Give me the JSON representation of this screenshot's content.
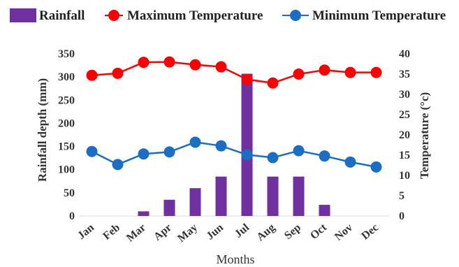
{
  "chart_data": {
    "type": "bar",
    "categories": [
      "Jan",
      "Feb",
      "Mar",
      "Apr",
      "May",
      "Jun",
      "Jul",
      "Aug",
      "Sep",
      "Oct",
      "Nov",
      "Dec"
    ],
    "series": [
      {
        "name": "Rainfall",
        "type": "bar",
        "axis": "left",
        "color": "#7030a0",
        "values": [
          0,
          0,
          10,
          35,
          60,
          85,
          307,
          85,
          85,
          24,
          0,
          0
        ]
      },
      {
        "name": "Maximum Temperature",
        "type": "line",
        "axis": "right",
        "color": "#ff0000",
        "values": [
          34.7,
          35.2,
          37.9,
          38.0,
          37.3,
          36.8,
          33.7,
          32.8,
          35.0,
          36.0,
          35.4,
          35.4
        ]
      },
      {
        "name": "Minimum Temperature",
        "type": "line",
        "axis": "right",
        "color": "#1a6fc4",
        "values": [
          15.9,
          12.7,
          15.3,
          15.8,
          18.2,
          17.3,
          15.1,
          14.4,
          16.1,
          14.8,
          13.3,
          12.1
        ]
      }
    ],
    "xlabel": "Months",
    "ylabel": "Rainfall depth (mm)",
    "y2label": "Temperature (°c)",
    "ylim": [
      0,
      350
    ],
    "y2lim": [
      0,
      40
    ],
    "yticks": [
      "0",
      "50",
      "100",
      "150",
      "200",
      "250",
      "300",
      "350"
    ],
    "y2ticks": [
      "0",
      "5",
      "10",
      "15",
      "20",
      "25",
      "30",
      "35",
      "40"
    ],
    "grid": false,
    "legend_position": "top"
  }
}
